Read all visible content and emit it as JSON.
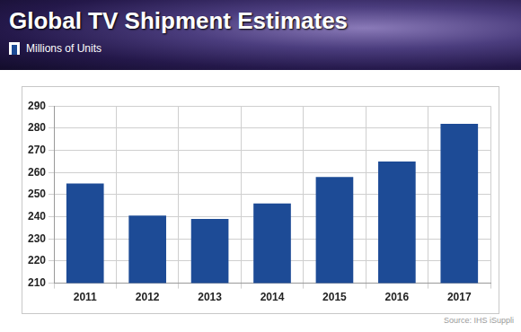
{
  "chart_data": {
    "type": "bar",
    "title": "Global TV Shipment Estimates",
    "subtitle": "Millions of Units",
    "annotations": [
      "Source: IHS iSuppli"
    ],
    "categories": [
      "2011",
      "2012",
      "2013",
      "2014",
      "2015",
      "2016",
      "2017"
    ],
    "values": [
      255,
      240.5,
      239,
      246,
      258,
      265,
      282
    ],
    "color": "#1d4b96",
    "ylim": [
      210,
      290
    ],
    "yticks": [
      210,
      220,
      230,
      240,
      250,
      260,
      270,
      280,
      290
    ],
    "grid": true
  }
}
